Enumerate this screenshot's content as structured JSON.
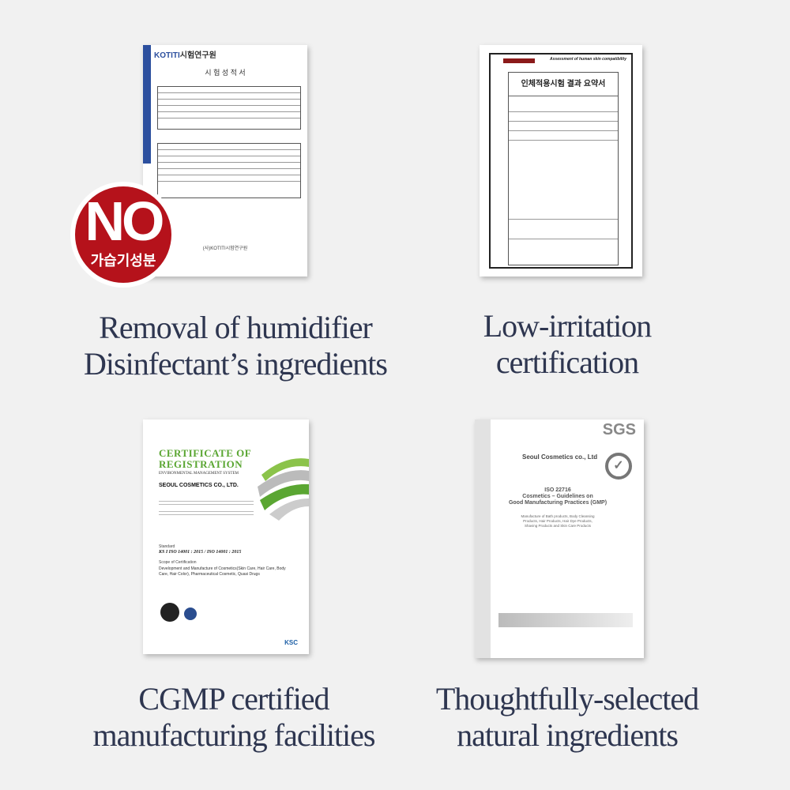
{
  "sections": [
    {
      "caption_lines": [
        "Removal of humidifier",
        "Disinfectant’s ingredients"
      ],
      "certificate": {
        "logo": "KOTITI",
        "logo_ko": "시험연구원",
        "title": "시 험 성 적 서",
        "footer": "(사)KOTITI시험연구원"
      },
      "badge": {
        "main": "NO",
        "sub": "가습기성분",
        "color": "#b5121b"
      }
    },
    {
      "caption_lines": [
        "Low-irritation",
        "certification"
      ],
      "certificate": {
        "header_right": "Assessment of human skin compatibility",
        "title": "인체적용시험 결과 요약서"
      }
    },
    {
      "caption_lines": [
        "CGMP certified",
        "manufacturing facilities"
      ],
      "certificate": {
        "title_lines": [
          "CERTIFICATE OF",
          "REGISTRATION"
        ],
        "subtitle": "ENVIRONMENTAL MANAGEMENT SYSTEM",
        "company": "SEOUL COSMETICS CO., LTD.",
        "standard_label": "Standard",
        "standard": "KS I ISO 14001 : 2015 / ISO 14001 : 2015",
        "scope_label": "Scope of Certification",
        "scope": "Development and Manufacture of Cosmetics(Skin Care, Hair Care, Body Care, Hair Color), Pharmaceutical Cosmetic, Quasi Drugs",
        "seal": "KSC",
        "accent": "#5aa632"
      }
    },
    {
      "caption_lines": [
        "Thoughtfully-selected",
        "natural ingredients"
      ],
      "certificate": {
        "brand": "SGS",
        "company": "Seoul Cosmetics co., Ltd",
        "standard": "ISO 22716",
        "standard_title_lines": [
          "Cosmetics – Guidelines on",
          "Good Manufacturing Practices (GMP)"
        ],
        "scope": "Manufacture of Bath products, Body Cleansing Products, Hair Products, Hair Dye Products, Shaving Products and Skin Care Products"
      }
    }
  ],
  "colors": {
    "caption": "#2e3650",
    "background": "#f1f1f1"
  }
}
